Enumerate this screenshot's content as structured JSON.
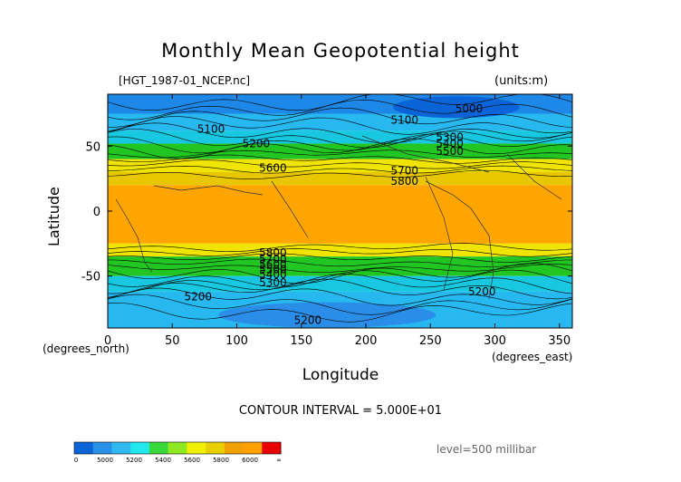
{
  "header": {
    "title": "Monthly Mean Geopotential height",
    "filename": "[HGT_1987-01_NCEP.nc]",
    "units": "(units:m)"
  },
  "footer": {
    "contour_interval": "CONTOUR INTERVAL = 5.000E+01",
    "level": "level=500 millibar"
  },
  "chart_data": {
    "type": "heatmap",
    "title": "Monthly Mean Geopotential height",
    "xlabel": "Longitude",
    "ylabel": "Latitude",
    "x_unit_label": "(degrees_east)",
    "y_unit_label": "(degrees_north)",
    "xlim": [
      0,
      360
    ],
    "ylim": [
      -90,
      90
    ],
    "x_ticks": [
      0,
      50,
      100,
      150,
      200,
      250,
      300,
      350
    ],
    "y_ticks": [
      50,
      0,
      -50
    ],
    "grid": false,
    "contour_interval": 50,
    "bands": [
      {
        "lat_from": 90,
        "lat_to": 75,
        "value": 5100,
        "color": "#1e88e8"
      },
      {
        "lat_from": 75,
        "lat_to": 62,
        "value": 5250,
        "color": "#27b8f0"
      },
      {
        "lat_from": 62,
        "lat_to": 52,
        "value": 5400,
        "color": "#18c8e0"
      },
      {
        "lat_from": 52,
        "lat_to": 40,
        "value": 5550,
        "color": "#22c622"
      },
      {
        "lat_from": 40,
        "lat_to": 30,
        "value": 5700,
        "color": "#f0e400"
      },
      {
        "lat_from": 30,
        "lat_to": 20,
        "value": 5800,
        "color": "#e8c600"
      },
      {
        "lat_from": 20,
        "lat_to": -25,
        "value": 5850,
        "color": "#ffa500"
      },
      {
        "lat_from": -25,
        "lat_to": -35,
        "value": 5750,
        "color": "#f0e400"
      },
      {
        "lat_from": -35,
        "lat_to": -50,
        "value": 5500,
        "color": "#22c622"
      },
      {
        "lat_from": -50,
        "lat_to": -62,
        "value": 5350,
        "color": "#18c8e0"
      },
      {
        "lat_from": -62,
        "lat_to": -90,
        "value": 5200,
        "color": "#27b8f0"
      }
    ],
    "contour_labels": [
      {
        "text": "5100",
        "lon": 80,
        "lat": 63
      },
      {
        "text": "5200",
        "lon": 115,
        "lat": 52
      },
      {
        "text": "5600",
        "lon": 128,
        "lat": 33
      },
      {
        "text": "5100",
        "lon": 230,
        "lat": 70
      },
      {
        "text": "5000",
        "lon": 280,
        "lat": 79
      },
      {
        "text": "5300",
        "lon": 265,
        "lat": 57
      },
      {
        "text": "5400",
        "lon": 265,
        "lat": 52
      },
      {
        "text": "5500",
        "lon": 265,
        "lat": 46
      },
      {
        "text": "5700",
        "lon": 230,
        "lat": 31
      },
      {
        "text": "5800",
        "lon": 230,
        "lat": 23
      },
      {
        "text": "5800",
        "lon": 128,
        "lat": -32
      },
      {
        "text": "5700",
        "lon": 128,
        "lat": -37
      },
      {
        "text": "5600",
        "lon": 128,
        "lat": -41
      },
      {
        "text": "5500",
        "lon": 128,
        "lat": -45
      },
      {
        "text": "5400",
        "lon": 128,
        "lat": -49
      },
      {
        "text": "5300",
        "lon": 128,
        "lat": -55
      },
      {
        "text": "5200",
        "lon": 70,
        "lat": -66
      },
      {
        "text": "5200",
        "lon": 290,
        "lat": -62
      },
      {
        "text": "5200",
        "lon": 155,
        "lat": -84
      }
    ],
    "colorbar": {
      "tick_labels": [
        "0",
        "5000",
        "5200",
        "5400",
        "5600",
        "5800",
        "6000",
        "∞"
      ],
      "colors": [
        "#0a64d8",
        "#2990e8",
        "#30b8f0",
        "#20e8ee",
        "#38d838",
        "#90e820",
        "#f0f000",
        "#e8d000",
        "#f0a000",
        "#ffa000",
        "#e80000"
      ]
    }
  }
}
